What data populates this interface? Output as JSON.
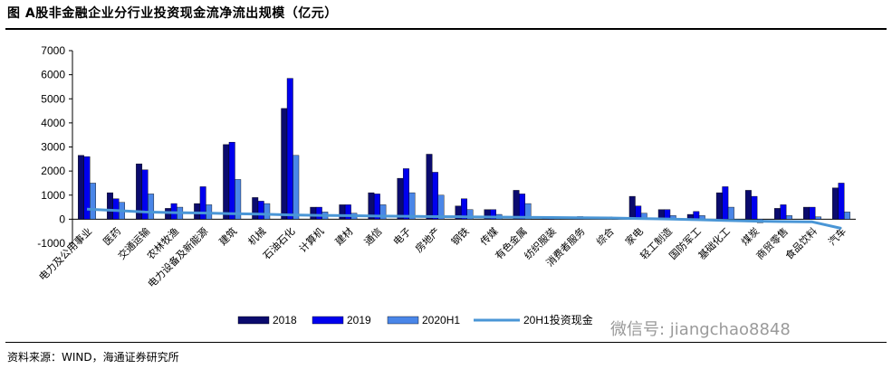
{
  "title": "图 A股非金融企业分行业投资现金流净流出规模（亿元）",
  "source": "资料来源：WIND，海通证券研究所",
  "watermark": "微信号: jiangchao8848",
  "colors": {
    "s2018": "#0b0b6e",
    "s2019": "#0000ee",
    "s2020": "#4a86e8",
    "ratio": "#4a96d6"
  },
  "chart_data": {
    "type": "bar",
    "title": "",
    "xlabel": "",
    "ylabel": "",
    "ylim": [
      -1000,
      7000
    ],
    "yticks": [
      -1000,
      0,
      1000,
      2000,
      3000,
      4000,
      5000,
      6000,
      7000
    ],
    "grid": false,
    "legend_position": "bottom",
    "categories": [
      "电力及公用事业",
      "医药",
      "交通运输",
      "农林牧渔",
      "电力设备及新能源",
      "建筑",
      "机械",
      "石油石化",
      "计算机",
      "建材",
      "通信",
      "电子",
      "房地产",
      "钢铁",
      "传媒",
      "有色金属",
      "纺织服装",
      "消费者服务",
      "综合",
      "家电",
      "轻工制造",
      "国防军工",
      "基础化工",
      "煤炭",
      "商贸零售",
      "食品饮料",
      "汽车"
    ],
    "series": [
      {
        "name": "2018",
        "values": [
          2650,
          1100,
          2300,
          450,
          650,
          3100,
          900,
          4600,
          500,
          600,
          1100,
          1700,
          2700,
          550,
          400,
          1200,
          50,
          80,
          30,
          950,
          400,
          200,
          1100,
          1200,
          450,
          500,
          1300
        ]
      },
      {
        "name": "2019",
        "values": [
          2600,
          850,
          2050,
          650,
          1350,
          3200,
          750,
          5850,
          500,
          600,
          1050,
          2100,
          1950,
          850,
          400,
          1050,
          100,
          110,
          100,
          550,
          400,
          320,
          1350,
          950,
          600,
          500,
          1500
        ]
      },
      {
        "name": "2020H1",
        "values": [
          1500,
          700,
          1050,
          500,
          600,
          1650,
          650,
          2650,
          300,
          250,
          600,
          1100,
          1000,
          400,
          200,
          650,
          30,
          100,
          20,
          250,
          150,
          150,
          500,
          -150,
          150,
          100,
          300
        ]
      }
    ],
    "line_series": {
      "name": "20H1投资现金",
      "values": [
        420,
        360,
        300,
        270,
        260,
        230,
        210,
        180,
        160,
        150,
        130,
        120,
        110,
        100,
        90,
        80,
        70,
        60,
        50,
        30,
        10,
        -20,
        -50,
        -80,
        -100,
        -110,
        -380
      ]
    }
  }
}
